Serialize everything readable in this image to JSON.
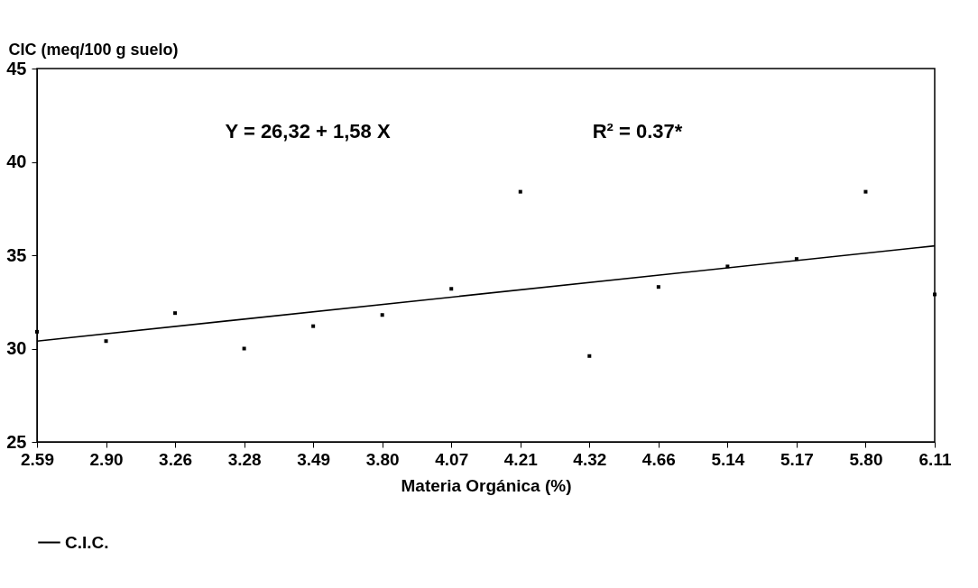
{
  "chart_data": {
    "type": "scatter",
    "xlabel": "Materia Orgánica (%)",
    "ylabel": "CIC (meq/100 g suelo)",
    "categories": [
      "2.59",
      "2.90",
      "3.26",
      "3.28",
      "3.49",
      "3.80",
      "4.07",
      "4.21",
      "4.32",
      "4.66",
      "5.14",
      "5.17",
      "5.80",
      "6.11"
    ],
    "series": [
      {
        "name": "C.I.C.",
        "color": "#000000",
        "values": [
          30.9,
          30.4,
          31.9,
          30.0,
          31.2,
          31.8,
          33.2,
          38.4,
          29.6,
          33.3,
          34.4,
          34.8,
          38.4,
          32.9
        ]
      },
      {
        "type": "line",
        "marker": "none",
        "color": "#000000",
        "x": [
          "2.59",
          "6.11"
        ],
        "values": [
          30.4,
          35.5
        ]
      }
    ],
    "ylim": [
      25,
      45
    ],
    "yticks": [
      25,
      30,
      35,
      40,
      45
    ],
    "grid": false,
    "legend": "bottom",
    "marker": "square",
    "annotations": [
      "Y = 26,32 + 1,58 X",
      "R² = 0.37*"
    ]
  }
}
